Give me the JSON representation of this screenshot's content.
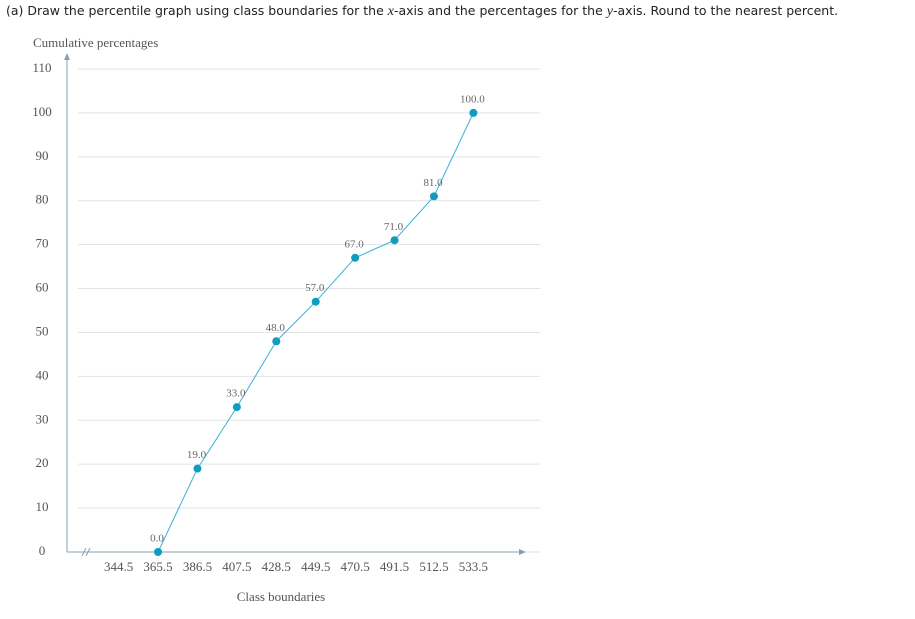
{
  "question": [
    "(a) Draw the percentile graph using class boundaries for the ",
    "x",
    "-axis and the percentages for the ",
    "y",
    "-axis. Round to the nearest percent."
  ],
  "chart_data": {
    "type": "line",
    "y_label": "Cumulative percentages",
    "x_label": "Class boundaries",
    "x": [
      365.5,
      386.5,
      407.5,
      428.5,
      449.5,
      470.5,
      491.5,
      512.5,
      533.5
    ],
    "values": [
      0,
      19,
      33,
      48,
      57,
      67,
      71,
      81,
      100
    ],
    "value_labels": [
      "0.0",
      "19.0",
      "33.0",
      "48.0",
      "57.0",
      "67.0",
      "71.0",
      "81.0",
      "100.0"
    ],
    "color": "#3ab0d6",
    "marker_color": "#0e9cbf",
    "xlim": [
      317,
      561
    ],
    "xticks": [
      344.5,
      365.5,
      386.5,
      407.5,
      428.5,
      449.5,
      470.5,
      491.5,
      512.5,
      533.5
    ],
    "ylim": [
      0,
      110
    ],
    "yticks": [
      0,
      10,
      20,
      30,
      40,
      50,
      60,
      70,
      80,
      90,
      100,
      110
    ],
    "grid": true
  }
}
